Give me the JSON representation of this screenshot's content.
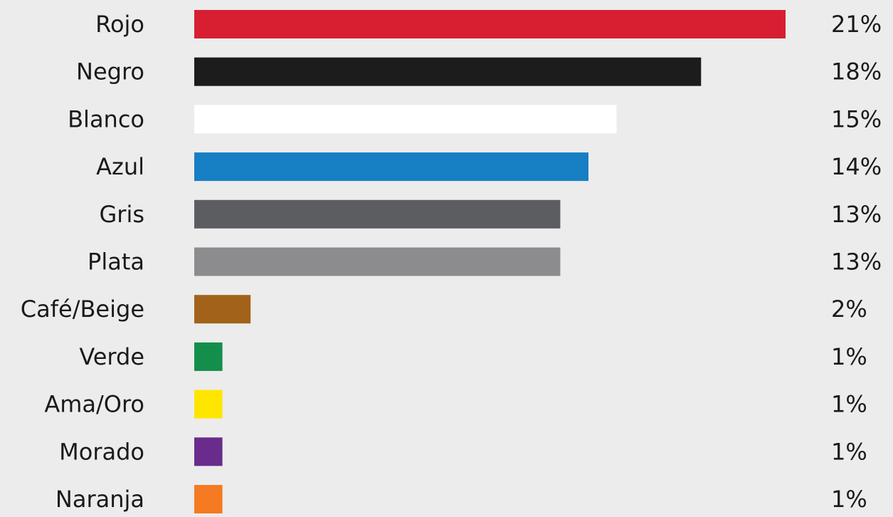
{
  "chart_data": {
    "type": "bar",
    "orientation": "horizontal",
    "categories": [
      "Rojo",
      "Negro",
      "Blanco",
      "Azul",
      "Gris",
      "Plata",
      "Café/Beige",
      "Verde",
      "Ama/Oro",
      "Morado",
      "Naranja"
    ],
    "values": [
      21,
      18,
      15,
      14,
      13,
      13,
      2,
      1,
      1,
      1,
      1
    ],
    "value_labels": [
      "21%",
      "18%",
      "15%",
      "14%",
      "13%",
      "13%",
      "2%",
      "1%",
      "1%",
      "1%",
      "1%"
    ],
    "bar_colors": [
      "#d71f31",
      "#1c1c1c",
      "#ffffff",
      "#177fc3",
      "#5c5d61",
      "#8c8c8f",
      "#a26219",
      "#138f4b",
      "#ffe600",
      "#6a2c8c",
      "#f57a21"
    ],
    "background": "#ececec",
    "title": "",
    "xlabel": "",
    "ylabel": "",
    "grid": false,
    "legend": "none"
  }
}
